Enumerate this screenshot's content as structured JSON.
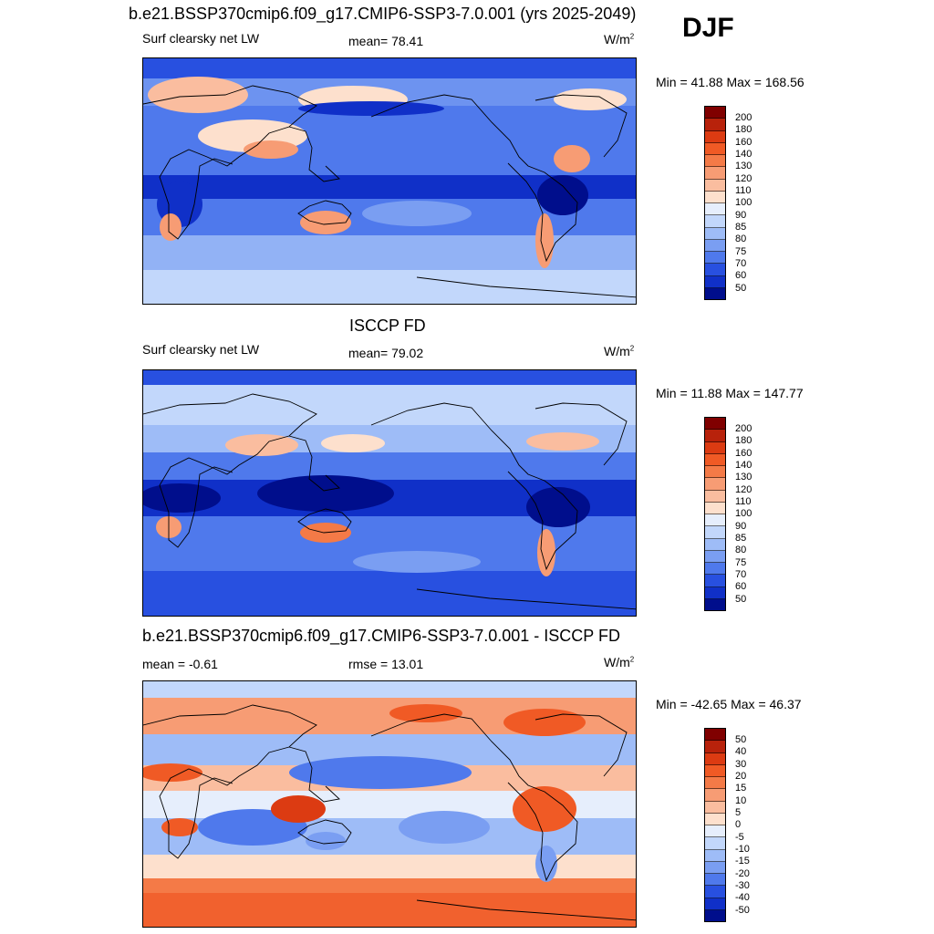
{
  "season": "DJF",
  "units": "W/m",
  "units_sup": "2",
  "panels": [
    {
      "title": "b.e21.BSSP370cmip6.f09_g17.CMIP6-SSP3-7.0.001 (yrs 2025-2049)",
      "left": "Surf clearsky net LW",
      "center": "mean=  78.41",
      "minmax": "Min =  41.88 Max = 168.56",
      "colorbar": {
        "labels": [
          "200",
          "180",
          "160",
          "140",
          "130",
          "120",
          "110",
          "100",
          "90",
          "85",
          "80",
          "75",
          "70",
          "60",
          "50"
        ],
        "colors": [
          "#800000",
          "#b8220b",
          "#dc3b12",
          "#f05a25",
          "#f47a47",
          "#f79c74",
          "#fabd9f",
          "#fde0cd",
          "#e6eefc",
          "#c2d7fb",
          "#9ebcf7",
          "#7a9ef2",
          "#4f79ec",
          "#2850e0",
          "#1030c8",
          "#000e8c"
        ]
      }
    },
    {
      "title": "ISCCP FD",
      "left": "Surf clearsky net LW",
      "center": "mean=  79.02",
      "minmax": "Min =  11.88 Max = 147.77",
      "colorbar": {
        "labels": [
          "200",
          "180",
          "160",
          "140",
          "130",
          "120",
          "110",
          "100",
          "90",
          "85",
          "80",
          "75",
          "70",
          "60",
          "50"
        ],
        "colors": [
          "#800000",
          "#b8220b",
          "#dc3b12",
          "#f05a25",
          "#f47a47",
          "#f79c74",
          "#fabd9f",
          "#fde0cd",
          "#e6eefc",
          "#c2d7fb",
          "#9ebcf7",
          "#7a9ef2",
          "#4f79ec",
          "#2850e0",
          "#1030c8",
          "#000e8c"
        ]
      }
    },
    {
      "title": "b.e21.BSSP370cmip6.f09_g17.CMIP6-SSP3-7.0.001 - ISCCP FD",
      "left": "mean =  -0.61",
      "center": "rmse =  13.01",
      "minmax": "Min = -42.65 Max =  46.37",
      "colorbar": {
        "labels": [
          "50",
          "40",
          "30",
          "20",
          "15",
          "10",
          "5",
          "0",
          "-5",
          "-10",
          "-15",
          "-20",
          "-30",
          "-40",
          "-50"
        ],
        "colors": [
          "#800000",
          "#b8220b",
          "#dc3b12",
          "#f05a25",
          "#f47a47",
          "#f79c74",
          "#fabd9f",
          "#fde0cd",
          "#e6eefc",
          "#c2d7fb",
          "#9ebcf7",
          "#7a9ef2",
          "#4f79ec",
          "#2850e0",
          "#1030c8",
          "#000e8c"
        ]
      }
    }
  ]
}
